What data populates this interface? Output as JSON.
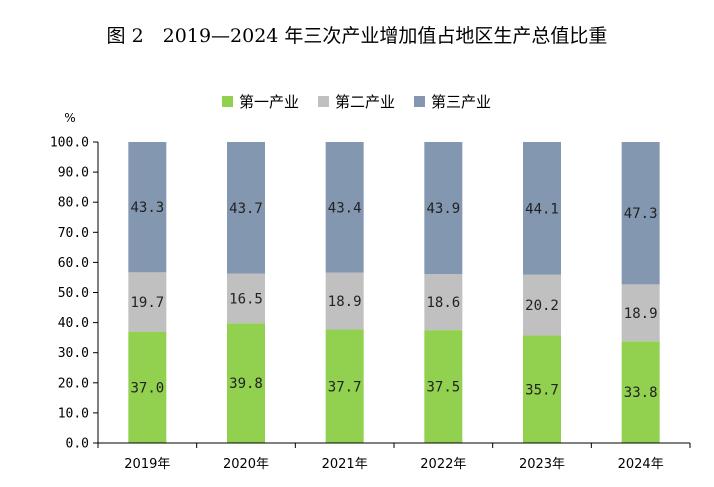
{
  "chart_data": {
    "type": "bar",
    "stacked": true,
    "title": "图 2　2019—2024 年三次产业增加值占地区生产总值比重",
    "ylabel": "%",
    "xlabel": "",
    "ylim": [
      0,
      100
    ],
    "yticks": [
      "0.0",
      "10.0",
      "20.0",
      "30.0",
      "40.0",
      "50.0",
      "60.0",
      "70.0",
      "80.0",
      "90.0",
      "100.0"
    ],
    "categories": [
      "2019年",
      "2020年",
      "2021年",
      "2022年",
      "2023年",
      "2024年"
    ],
    "legend_position": "top",
    "grid": false,
    "series": [
      {
        "name": "第一产业",
        "color": "#92d050",
        "values": [
          37.0,
          39.8,
          37.7,
          37.5,
          35.7,
          33.8
        ],
        "labels": [
          "37.0",
          "39.8",
          "37.7",
          "37.5",
          "35.7",
          "33.8"
        ]
      },
      {
        "name": "第二产业",
        "color": "#c0c0c0",
        "values": [
          19.7,
          16.5,
          18.9,
          18.6,
          20.2,
          18.9
        ],
        "labels": [
          "19.7",
          "16.5",
          "18.9",
          "18.6",
          "20.2",
          "18.9"
        ]
      },
      {
        "name": "第三产业",
        "color": "#8497b0",
        "values": [
          43.3,
          43.7,
          43.4,
          43.9,
          44.1,
          47.3
        ],
        "labels": [
          "43.3",
          "43.7",
          "43.4",
          "43.9",
          "44.1",
          "47.3"
        ]
      }
    ]
  }
}
